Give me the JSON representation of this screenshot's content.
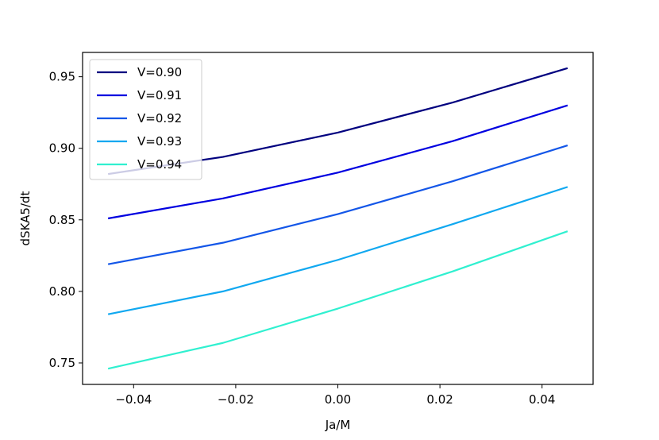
{
  "chart_data": {
    "type": "line",
    "title": "",
    "xlabel": "Ja/M",
    "ylabel": "dSKA5/dt",
    "xlim": [
      -0.05,
      0.05
    ],
    "ylim": [
      0.735,
      0.967
    ],
    "xticks": [
      -0.04,
      -0.02,
      0.0,
      0.02,
      0.04
    ],
    "xtick_labels": [
      "−0.04",
      "−0.02",
      "0.00",
      "0.02",
      "0.04"
    ],
    "yticks": [
      0.75,
      0.8,
      0.85,
      0.9,
      0.95
    ],
    "ytick_labels": [
      "0.75",
      "0.80",
      "0.85",
      "0.90",
      "0.95"
    ],
    "grid": false,
    "legend_position": "top-left",
    "x": [
      -0.045,
      -0.0225,
      0.0,
      0.0225,
      0.045
    ],
    "series": [
      {
        "name": "V=0.90",
        "color": "#00007f",
        "values": [
          0.882,
          0.894,
          0.911,
          0.932,
          0.956
        ]
      },
      {
        "name": "V=0.91",
        "color": "#0000e0",
        "values": [
          0.851,
          0.865,
          0.883,
          0.905,
          0.93
        ]
      },
      {
        "name": "V=0.92",
        "color": "#1356e8",
        "values": [
          0.819,
          0.834,
          0.854,
          0.877,
          0.902
        ]
      },
      {
        "name": "V=0.93",
        "color": "#10a8f0",
        "values": [
          0.784,
          0.8,
          0.822,
          0.847,
          0.873
        ]
      },
      {
        "name": "V=0.94",
        "color": "#30f0d0",
        "values": [
          0.746,
          0.764,
          0.788,
          0.814,
          0.842
        ]
      }
    ]
  }
}
